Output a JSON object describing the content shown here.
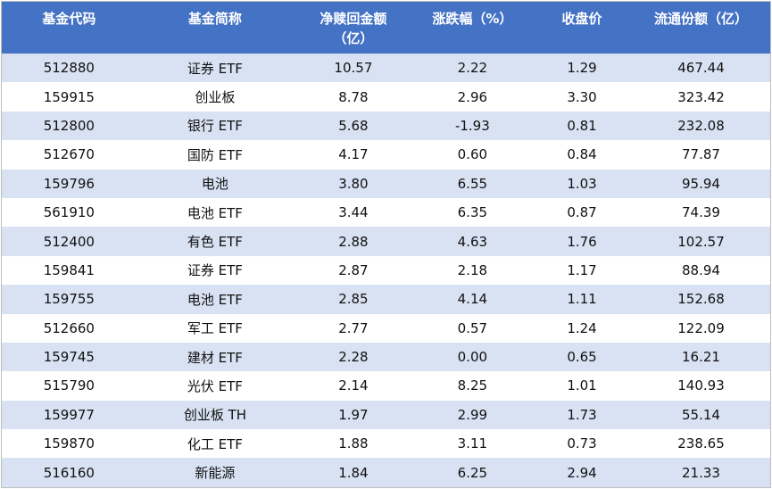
{
  "chart_data": {
    "type": "table",
    "title": "",
    "columns": [
      {
        "lines": [
          "基金代码"
        ]
      },
      {
        "lines": [
          "基金简称"
        ]
      },
      {
        "lines": [
          "净赎回金额",
          "（亿）"
        ]
      },
      {
        "lines": [
          "涨跌幅（%）"
        ]
      },
      {
        "lines": [
          "收盘价"
        ]
      },
      {
        "lines": [
          "流通份额（亿）"
        ]
      }
    ],
    "rows": [
      [
        "512880",
        "证券 ETF",
        "10.57",
        "2.22",
        "1.29",
        "467.44"
      ],
      [
        "159915",
        "创业板",
        "8.78",
        "2.96",
        "3.30",
        "323.42"
      ],
      [
        "512800",
        "银行 ETF",
        "5.68",
        "-1.93",
        "0.81",
        "232.08"
      ],
      [
        "512670",
        "国防 ETF",
        "4.17",
        "0.60",
        "0.84",
        "77.87"
      ],
      [
        "159796",
        "电池",
        "3.80",
        "6.55",
        "1.03",
        "95.94"
      ],
      [
        "561910",
        "电池 ETF",
        "3.44",
        "6.35",
        "0.87",
        "74.39"
      ],
      [
        "512400",
        "有色 ETF",
        "2.88",
        "4.63",
        "1.76",
        "102.57"
      ],
      [
        "159841",
        "证券 ETF",
        "2.87",
        "2.18",
        "1.17",
        "88.94"
      ],
      [
        "159755",
        "电池 ETF",
        "2.85",
        "4.14",
        "1.11",
        "152.68"
      ],
      [
        "512660",
        "军工 ETF",
        "2.77",
        "0.57",
        "1.24",
        "122.09"
      ],
      [
        "159745",
        "建材 ETF",
        "2.28",
        "0.00",
        "0.65",
        "16.21"
      ],
      [
        "515790",
        "光伏 ETF",
        "2.14",
        "8.25",
        "1.01",
        "140.93"
      ],
      [
        "159977",
        "创业板 TH",
        "1.97",
        "2.99",
        "1.73",
        "55.14"
      ],
      [
        "159870",
        "化工 ETF",
        "1.88",
        "3.11",
        "0.73",
        "238.65"
      ],
      [
        "516160",
        "新能源",
        "1.84",
        "6.25",
        "2.94",
        "21.33"
      ]
    ],
    "colors": {
      "header_bg": "#4472c4",
      "header_text": "#ffffff",
      "band_row_bg": "#d9e2f3",
      "plain_row_bg": "#ffffff",
      "body_text": "#111111",
      "outer_border": "#bfbfbf"
    },
    "layout": {
      "banded_rows": true,
      "header_rows": 1
    }
  }
}
